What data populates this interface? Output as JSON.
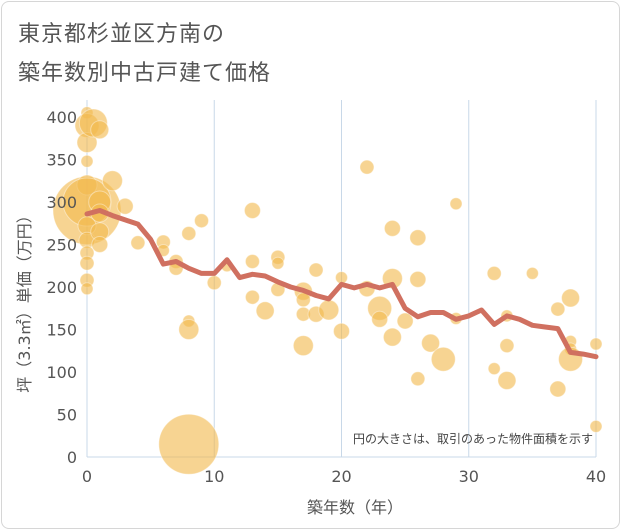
{
  "chart_data": {
    "type": "scatter",
    "title_lines": [
      "東京都杉並区方南の",
      "築年数別中古戸建て価格"
    ],
    "xlabel": "築年数（年）",
    "ylabel": "坪（3.3㎡）単価（万円）",
    "xlim": [
      0,
      40
    ],
    "ylim": [
      0,
      420
    ],
    "x_ticks": [
      0,
      10,
      20,
      30,
      40
    ],
    "y_ticks": [
      0,
      50,
      100,
      150,
      200,
      250,
      300,
      350,
      400
    ],
    "grid": "vertical",
    "note": "円の大きさは、取引のあった物件面積を示す",
    "colors": {
      "bubble": "#f2b94f",
      "line": "#d07060"
    },
    "average_line": {
      "x": [
        0,
        1,
        2,
        3,
        4,
        5,
        6,
        7,
        8,
        9,
        10,
        11,
        12,
        13,
        14,
        15,
        16,
        17,
        18,
        19,
        20,
        21,
        22,
        23,
        24,
        25,
        26,
        27,
        28,
        29,
        30,
        31,
        32,
        33,
        34,
        35,
        36,
        37,
        38,
        39,
        40
      ],
      "y": [
        286,
        290,
        284,
        279,
        274,
        256,
        227,
        230,
        222,
        216,
        216,
        232,
        211,
        215,
        213,
        206,
        200,
        196,
        190,
        186,
        203,
        199,
        203,
        199,
        203,
        175,
        165,
        170,
        170,
        162,
        166,
        173,
        156,
        166,
        162,
        155,
        153,
        151,
        123,
        121,
        118
      ]
    },
    "bubbles": [
      {
        "x": 0.0,
        "y": 290,
        "s": 34
      },
      {
        "x": 0.0,
        "y": 405,
        "s": 6
      },
      {
        "x": 0.0,
        "y": 390,
        "s": 12
      },
      {
        "x": 0.0,
        "y": 370,
        "s": 10
      },
      {
        "x": 0.0,
        "y": 348,
        "s": 6
      },
      {
        "x": 0.0,
        "y": 320,
        "s": 10
      },
      {
        "x": 0.0,
        "y": 300,
        "s": 24
      },
      {
        "x": 0.0,
        "y": 272,
        "s": 9
      },
      {
        "x": 0.0,
        "y": 255,
        "s": 8
      },
      {
        "x": 0.0,
        "y": 240,
        "s": 7
      },
      {
        "x": 0.0,
        "y": 228,
        "s": 7
      },
      {
        "x": 0.0,
        "y": 208,
        "s": 7
      },
      {
        "x": 0.0,
        "y": 198,
        "s": 6
      },
      {
        "x": 0.5,
        "y": 393,
        "s": 14
      },
      {
        "x": 1.0,
        "y": 385,
        "s": 9
      },
      {
        "x": 1.0,
        "y": 300,
        "s": 11
      },
      {
        "x": 1.0,
        "y": 287,
        "s": 9
      },
      {
        "x": 1.0,
        "y": 265,
        "s": 9
      },
      {
        "x": 1.0,
        "y": 250,
        "s": 8
      },
      {
        "x": 2.0,
        "y": 325,
        "s": 10
      },
      {
        "x": 3.0,
        "y": 295,
        "s": 8
      },
      {
        "x": 4.0,
        "y": 252,
        "s": 7
      },
      {
        "x": 6.0,
        "y": 253,
        "s": 7
      },
      {
        "x": 6.0,
        "y": 243,
        "s": 6
      },
      {
        "x": 7.0,
        "y": 230,
        "s": 7
      },
      {
        "x": 7.0,
        "y": 222,
        "s": 7
      },
      {
        "x": 8.0,
        "y": 263,
        "s": 7
      },
      {
        "x": 8.0,
        "y": 160,
        "s": 6
      },
      {
        "x": 8.0,
        "y": 150,
        "s": 10
      },
      {
        "x": 9.0,
        "y": 278,
        "s": 7
      },
      {
        "x": 8.0,
        "y": 15,
        "s": 30
      },
      {
        "x": 10.0,
        "y": 205,
        "s": 7
      },
      {
        "x": 11.0,
        "y": 225,
        "s": 6
      },
      {
        "x": 13.0,
        "y": 290,
        "s": 8
      },
      {
        "x": 13.0,
        "y": 230,
        "s": 7
      },
      {
        "x": 13.0,
        "y": 188,
        "s": 7
      },
      {
        "x": 14.0,
        "y": 172,
        "s": 9
      },
      {
        "x": 15.0,
        "y": 235,
        "s": 7
      },
      {
        "x": 15.0,
        "y": 228,
        "s": 6
      },
      {
        "x": 15.0,
        "y": 197,
        "s": 7
      },
      {
        "x": 17.0,
        "y": 195,
        "s": 9
      },
      {
        "x": 17.0,
        "y": 185,
        "s": 7
      },
      {
        "x": 17.0,
        "y": 168,
        "s": 7
      },
      {
        "x": 17.0,
        "y": 131,
        "s": 10
      },
      {
        "x": 18.0,
        "y": 220,
        "s": 7
      },
      {
        "x": 18.0,
        "y": 168,
        "s": 8
      },
      {
        "x": 19.0,
        "y": 173,
        "s": 10
      },
      {
        "x": 20.0,
        "y": 211,
        "s": 6
      },
      {
        "x": 20.0,
        "y": 148,
        "s": 8
      },
      {
        "x": 22.0,
        "y": 341,
        "s": 7
      },
      {
        "x": 22.0,
        "y": 198,
        "s": 8
      },
      {
        "x": 23.0,
        "y": 175,
        "s": 12
      },
      {
        "x": 23.0,
        "y": 162,
        "s": 8
      },
      {
        "x": 24.0,
        "y": 269,
        "s": 8
      },
      {
        "x": 24.0,
        "y": 210,
        "s": 10
      },
      {
        "x": 24.0,
        "y": 141,
        "s": 9
      },
      {
        "x": 25.0,
        "y": 160,
        "s": 8
      },
      {
        "x": 26.0,
        "y": 258,
        "s": 8
      },
      {
        "x": 26.0,
        "y": 209,
        "s": 8
      },
      {
        "x": 26.0,
        "y": 92,
        "s": 7
      },
      {
        "x": 27.0,
        "y": 134,
        "s": 9
      },
      {
        "x": 28.0,
        "y": 115,
        "s": 12
      },
      {
        "x": 29.0,
        "y": 298,
        "s": 6
      },
      {
        "x": 29.0,
        "y": 163,
        "s": 6
      },
      {
        "x": 32.0,
        "y": 216,
        "s": 7
      },
      {
        "x": 32.0,
        "y": 104,
        "s": 6
      },
      {
        "x": 33.0,
        "y": 166,
        "s": 6
      },
      {
        "x": 33.0,
        "y": 131,
        "s": 7
      },
      {
        "x": 33.0,
        "y": 90,
        "s": 9
      },
      {
        "x": 35.0,
        "y": 216,
        "s": 6
      },
      {
        "x": 37.0,
        "y": 174,
        "s": 7
      },
      {
        "x": 37.0,
        "y": 80,
        "s": 8
      },
      {
        "x": 38.0,
        "y": 187,
        "s": 9
      },
      {
        "x": 38.0,
        "y": 136,
        "s": 6
      },
      {
        "x": 38.0,
        "y": 127,
        "s": 6
      },
      {
        "x": 38.0,
        "y": 115,
        "s": 12
      },
      {
        "x": 40.0,
        "y": 133,
        "s": 6
      },
      {
        "x": 40.0,
        "y": 36,
        "s": 6
      }
    ]
  }
}
